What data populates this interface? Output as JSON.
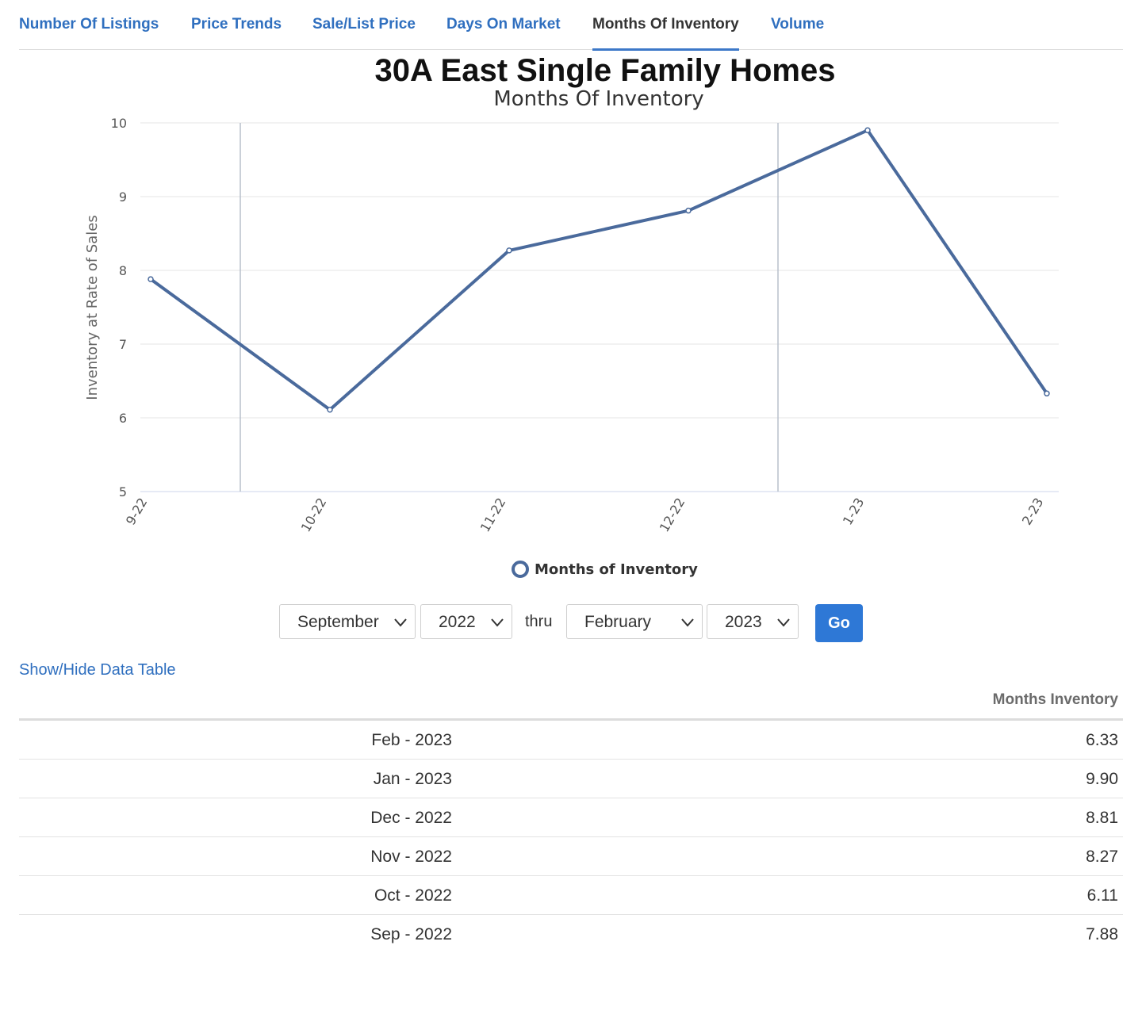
{
  "tabs": [
    {
      "label": "Number Of Listings",
      "active": false
    },
    {
      "label": "Price Trends",
      "active": false
    },
    {
      "label": "Sale/List Price",
      "active": false
    },
    {
      "label": "Days On Market",
      "active": false
    },
    {
      "label": "Months Of Inventory",
      "active": true
    },
    {
      "label": "Volume",
      "active": false
    }
  ],
  "colors": {
    "series": "#4a6a9c",
    "tab_link": "#2f6fbf",
    "go_button": "#2e78d6"
  },
  "chart_data": {
    "type": "line",
    "title": "30A East Single Family Homes",
    "subtitle": "Months Of Inventory",
    "ylabel": "Inventory at Rate of Sales",
    "xlabel": "",
    "categories": [
      "9-22",
      "10-22",
      "11-22",
      "12-22",
      "1-23",
      "2-23"
    ],
    "series": [
      {
        "name": "Months of Inventory",
        "values": [
          7.88,
          6.11,
          8.27,
          8.81,
          9.9,
          6.33
        ]
      }
    ],
    "ylim": [
      5,
      10
    ],
    "yticks": [
      5,
      6,
      7,
      8,
      9,
      10
    ],
    "grid": true,
    "legend": "bottom-center",
    "plot_bands": [
      "mid 9-22 to 10-22",
      "mid 12-22 to 1-23"
    ]
  },
  "controls": {
    "start_month": "September",
    "start_year": "2022",
    "thru_label": "thru",
    "end_month": "February",
    "end_year": "2023",
    "go_label": "Go"
  },
  "table": {
    "toggle_label": "Show/Hide Data Table",
    "header_value": "Months Inventory",
    "rows": [
      {
        "date": "Feb - 2023",
        "value": "6.33"
      },
      {
        "date": "Jan - 2023",
        "value": "9.90"
      },
      {
        "date": "Dec - 2022",
        "value": "8.81"
      },
      {
        "date": "Nov - 2022",
        "value": "8.27"
      },
      {
        "date": "Oct - 2022",
        "value": "6.11"
      },
      {
        "date": "Sep - 2022",
        "value": "7.88"
      }
    ]
  }
}
